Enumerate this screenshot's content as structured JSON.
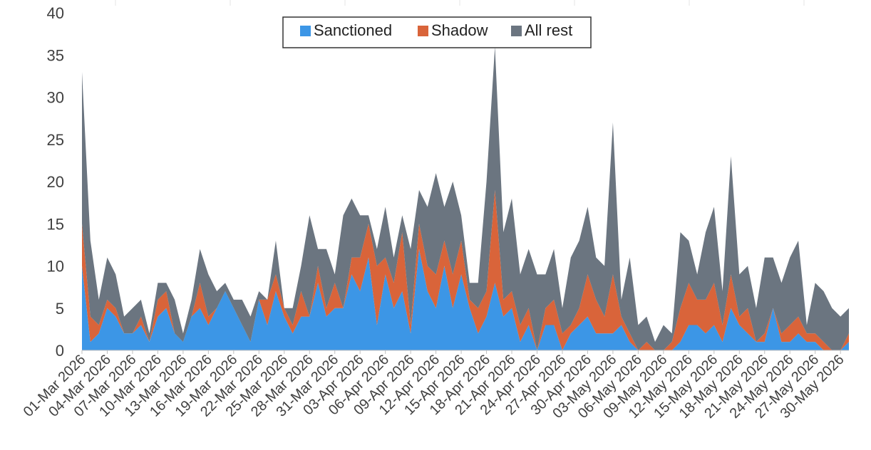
{
  "chart_data": {
    "type": "area",
    "stacked": true,
    "title": "",
    "xlabel": "",
    "ylabel": "",
    "ylim": [
      0,
      40
    ],
    "yticks": [
      0,
      5,
      10,
      15,
      20,
      25,
      30,
      35,
      40
    ],
    "grid": false,
    "legend_position": "top-center",
    "x": [
      "01-Mar 2026",
      "02-Mar 2026",
      "03-Mar 2026",
      "04-Mar 2026",
      "05-Mar 2026",
      "06-Mar 2026",
      "07-Mar 2026",
      "08-Mar 2026",
      "09-Mar 2026",
      "10-Mar 2026",
      "11-Mar 2026",
      "12-Mar 2026",
      "13-Mar 2026",
      "14-Mar 2026",
      "15-Mar 2026",
      "16-Mar 2026",
      "17-Mar 2026",
      "18-Mar 2026",
      "19-Mar 2026",
      "20-Mar 2026",
      "21-Mar 2026",
      "22-Mar 2026",
      "23-Mar 2026",
      "24-Mar 2026",
      "25-Mar 2026",
      "26-Mar 2026",
      "27-Mar 2026",
      "28-Mar 2026",
      "29-Mar 2026",
      "30-Mar 2026",
      "31-Mar 2026",
      "01-Apr 2026",
      "02-Apr 2026",
      "03-Apr 2026",
      "04-Apr 2026",
      "05-Apr 2026",
      "06-Apr 2026",
      "07-Apr 2026",
      "08-Apr 2026",
      "09-Apr 2026",
      "10-Apr 2026",
      "11-Apr 2026",
      "12-Apr 2026",
      "13-Apr 2026",
      "14-Apr 2026",
      "15-Apr 2026",
      "16-Apr 2026",
      "17-Apr 2026",
      "18-Apr 2026",
      "19-Apr 2026",
      "20-Apr 2026",
      "21-Apr 2026",
      "22-Apr 2026",
      "23-Apr 2026",
      "24-Apr 2026",
      "25-Apr 2026",
      "26-Apr 2026",
      "27-Apr 2026",
      "28-Apr 2026",
      "29-Apr 2026",
      "30-Apr 2026",
      "01-May 2026",
      "02-May 2026",
      "03-May 2026",
      "04-May 2026",
      "05-May 2026",
      "06-May 2026",
      "07-May 2026",
      "08-May 2026",
      "09-May 2026",
      "10-May 2026",
      "11-May 2026",
      "12-May 2026",
      "13-May 2026",
      "14-May 2026",
      "15-May 2026",
      "16-May 2026",
      "17-May 2026",
      "18-May 2026",
      "19-May 2026",
      "20-May 2026",
      "21-May 2026",
      "22-May 2026",
      "23-May 2026",
      "24-May 2026",
      "25-May 2026",
      "26-May 2026",
      "27-May 2026",
      "28-May 2026",
      "29-May 2026",
      "30-May 2026",
      "31-May 2026"
    ],
    "tick_labels": [
      "01-Mar 2026",
      "04-Mar 2026",
      "07-Mar 2026",
      "10-Mar 2026",
      "13-Mar 2026",
      "16-Mar 2026",
      "19-Mar 2026",
      "22-Mar 2026",
      "25-Mar 2026",
      "28-Mar 2026",
      "31-Mar 2026",
      "03-Apr 2026",
      "06-Apr 2026",
      "09-Apr 2026",
      "12-Apr 2026",
      "15-Apr 2026",
      "18-Apr 2026",
      "21-Apr 2026",
      "24-Apr 2026",
      "27-Apr 2026",
      "30-Apr 2026",
      "03-May 2026",
      "06-May 2026",
      "09-May 2026",
      "12-May 2026",
      "15-May 2026",
      "18-May 2026",
      "21-May 2026",
      "24-May 2026",
      "27-May 2026",
      "30-May 2026"
    ],
    "series": [
      {
        "name": "Sanctioned",
        "color": "#3c96e6",
        "values": [
          10,
          1,
          2,
          5,
          4,
          2,
          2,
          3,
          1,
          4,
          5,
          2,
          1,
          4,
          5,
          3,
          5,
          7,
          5,
          3,
          1,
          6,
          3,
          7,
          4,
          2,
          4,
          4,
          8,
          4,
          5,
          5,
          9,
          7,
          11,
          3,
          9,
          5,
          7,
          2,
          12,
          7,
          5,
          10,
          5,
          9,
          5,
          2,
          4,
          8,
          4,
          5,
          1,
          3,
          0,
          3,
          3,
          0,
          2,
          3,
          4,
          2,
          2,
          2,
          3,
          1,
          0,
          0,
          0,
          0,
          0,
          1,
          3,
          3,
          2,
          3,
          1,
          5,
          3,
          2,
          1,
          1,
          5,
          1,
          1,
          2,
          1,
          1,
          0,
          0,
          0,
          1
        ]
      },
      {
        "name": "Shadow",
        "color": "#d9643a",
        "values": [
          5,
          3,
          1,
          1,
          1,
          0,
          0,
          1,
          0,
          2,
          2,
          0,
          0,
          0,
          3,
          1,
          0,
          0,
          0,
          0,
          0,
          0,
          3,
          2,
          1,
          1,
          3,
          0,
          2,
          1,
          3,
          0,
          2,
          4,
          4,
          7,
          2,
          3,
          7,
          1,
          3,
          3,
          4,
          3,
          4,
          4,
          1,
          3,
          3,
          11,
          2,
          2,
          2,
          2,
          0,
          2,
          3,
          2,
          1,
          2,
          5,
          4,
          2,
          7,
          1,
          1,
          0,
          1,
          0,
          0,
          1,
          4,
          5,
          3,
          4,
          5,
          2,
          4,
          1,
          3,
          0,
          1,
          0,
          1,
          2,
          2,
          1,
          1,
          1,
          0,
          0,
          1
        ]
      },
      {
        "name": "All rest",
        "color": "#6b7580",
        "values": [
          18,
          9,
          3,
          5,
          4,
          2,
          3,
          2,
          1,
          2,
          1,
          4,
          1,
          2,
          4,
          5,
          2,
          1,
          1,
          3,
          3,
          1,
          0,
          4,
          0,
          2,
          3,
          12,
          2,
          7,
          1,
          11,
          7,
          5,
          1,
          2,
          6,
          3,
          2,
          9,
          4,
          7,
          12,
          4,
          11,
          3,
          2,
          3,
          13,
          17,
          8,
          11,
          6,
          7,
          9,
          4,
          6,
          3,
          8,
          8,
          8,
          5,
          6,
          18,
          2,
          9,
          3,
          3,
          1,
          3,
          1,
          9,
          5,
          3,
          8,
          9,
          4,
          14,
          5,
          5,
          4,
          9,
          6,
          6,
          8,
          9,
          1,
          6,
          6,
          5,
          4,
          3
        ]
      }
    ]
  },
  "legend": {
    "items": [
      {
        "label": "Sanctioned",
        "color": "#3c96e6"
      },
      {
        "label": "Shadow",
        "color": "#d9643a"
      },
      {
        "label": "All rest",
        "color": "#6b7580"
      }
    ]
  }
}
